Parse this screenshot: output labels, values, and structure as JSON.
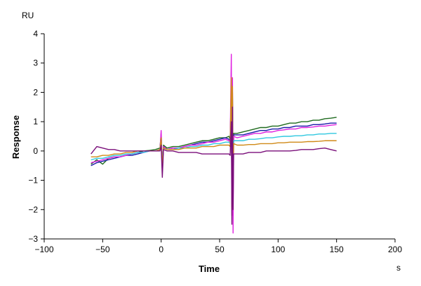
{
  "chart_data": {
    "type": "line",
    "title": "",
    "xlabel": "Time",
    "ylabel": "Response",
    "x_unit": "s",
    "y_unit": "RU",
    "xlim": [
      -100,
      200
    ],
    "ylim": [
      -3,
      4
    ],
    "xticks": [
      -100,
      -50,
      0,
      50,
      100,
      150,
      200
    ],
    "yticks": [
      -3,
      -2,
      -1,
      0,
      1,
      2,
      3,
      4
    ],
    "grid": false,
    "legend": "none",
    "series": [
      {
        "color": "#1f6b1f",
        "points": [
          [
            -60,
            -0.45
          ],
          [
            -55,
            -0.3
          ],
          [
            -50,
            -0.45
          ],
          [
            -45,
            -0.25
          ],
          [
            -40,
            -0.2
          ],
          [
            -35,
            -0.2
          ],
          [
            -30,
            -0.15
          ],
          [
            -25,
            -0.1
          ],
          [
            -20,
            -0.05
          ],
          [
            -15,
            0.0
          ],
          [
            -10,
            0.02
          ],
          [
            -5,
            0.05
          ],
          [
            -1,
            0.1
          ],
          [
            0,
            0.6
          ],
          [
            1,
            -0.7
          ],
          [
            2,
            0.2
          ],
          [
            5,
            0.1
          ],
          [
            10,
            0.15
          ],
          [
            15,
            0.15
          ],
          [
            20,
            0.2
          ],
          [
            25,
            0.25
          ],
          [
            30,
            0.3
          ],
          [
            35,
            0.35
          ],
          [
            40,
            0.35
          ],
          [
            45,
            0.4
          ],
          [
            50,
            0.45
          ],
          [
            55,
            0.45
          ],
          [
            58,
            0.5
          ],
          [
            59,
            0.4
          ],
          [
            60,
            2.2
          ],
          [
            60.5,
            -1.9
          ],
          [
            61,
            2.0
          ],
          [
            61.5,
            -0.8
          ],
          [
            62,
            0.6
          ],
          [
            65,
            0.6
          ],
          [
            70,
            0.65
          ],
          [
            75,
            0.7
          ],
          [
            80,
            0.75
          ],
          [
            85,
            0.8
          ],
          [
            90,
            0.8
          ],
          [
            95,
            0.85
          ],
          [
            100,
            0.85
          ],
          [
            105,
            0.9
          ],
          [
            110,
            0.95
          ],
          [
            115,
            0.95
          ],
          [
            120,
            1.0
          ],
          [
            125,
            1.0
          ],
          [
            130,
            1.05
          ],
          [
            135,
            1.05
          ],
          [
            140,
            1.1
          ],
          [
            145,
            1.12
          ],
          [
            150,
            1.15
          ]
        ]
      },
      {
        "color": "#1a1aa8",
        "points": [
          [
            -60,
            -0.5
          ],
          [
            -55,
            -0.4
          ],
          [
            -50,
            -0.35
          ],
          [
            -45,
            -0.3
          ],
          [
            -40,
            -0.25
          ],
          [
            -35,
            -0.2
          ],
          [
            -30,
            -0.15
          ],
          [
            -25,
            -0.15
          ],
          [
            -20,
            -0.1
          ],
          [
            -15,
            -0.05
          ],
          [
            -10,
            0.0
          ],
          [
            -5,
            0.0
          ],
          [
            -1,
            0.05
          ],
          [
            0,
            0.55
          ],
          [
            1,
            -0.6
          ],
          [
            2,
            0.15
          ],
          [
            5,
            0.05
          ],
          [
            10,
            0.1
          ],
          [
            15,
            0.1
          ],
          [
            20,
            0.15
          ],
          [
            25,
            0.2
          ],
          [
            30,
            0.25
          ],
          [
            35,
            0.3
          ],
          [
            40,
            0.3
          ],
          [
            45,
            0.35
          ],
          [
            50,
            0.4
          ],
          [
            55,
            0.45
          ],
          [
            58,
            0.4
          ],
          [
            59,
            0.35
          ],
          [
            60,
            2.0
          ],
          [
            60.5,
            -1.8
          ],
          [
            61,
            1.8
          ],
          [
            61.5,
            -0.7
          ],
          [
            62,
            0.55
          ],
          [
            65,
            0.55
          ],
          [
            70,
            0.55
          ],
          [
            75,
            0.6
          ],
          [
            80,
            0.65
          ],
          [
            85,
            0.7
          ],
          [
            90,
            0.7
          ],
          [
            95,
            0.75
          ],
          [
            100,
            0.75
          ],
          [
            105,
            0.8
          ],
          [
            110,
            0.8
          ],
          [
            115,
            0.85
          ],
          [
            120,
            0.85
          ],
          [
            125,
            0.85
          ],
          [
            130,
            0.9
          ],
          [
            135,
            0.9
          ],
          [
            140,
            0.92
          ],
          [
            145,
            0.95
          ],
          [
            150,
            0.95
          ]
        ]
      },
      {
        "color": "#e020e0",
        "points": [
          [
            -60,
            -0.4
          ],
          [
            -55,
            -0.35
          ],
          [
            -50,
            -0.3
          ],
          [
            -45,
            -0.25
          ],
          [
            -40,
            -0.2
          ],
          [
            -35,
            -0.2
          ],
          [
            -30,
            -0.15
          ],
          [
            -25,
            -0.1
          ],
          [
            -20,
            -0.05
          ],
          [
            -15,
            -0.05
          ],
          [
            -10,
            0.0
          ],
          [
            -5,
            0.0
          ],
          [
            -1,
            0.05
          ],
          [
            0,
            0.7
          ],
          [
            1,
            -0.55
          ],
          [
            2,
            0.15
          ],
          [
            5,
            0.05
          ],
          [
            10,
            0.1
          ],
          [
            15,
            0.1
          ],
          [
            20,
            0.15
          ],
          [
            25,
            0.2
          ],
          [
            30,
            0.2
          ],
          [
            35,
            0.25
          ],
          [
            40,
            0.3
          ],
          [
            45,
            0.3
          ],
          [
            50,
            0.35
          ],
          [
            55,
            0.4
          ],
          [
            58,
            0.35
          ],
          [
            59,
            0.3
          ],
          [
            60,
            3.3
          ],
          [
            60.5,
            -2.2
          ],
          [
            61,
            2.5
          ],
          [
            61.5,
            -2.8
          ],
          [
            62,
            0.5
          ],
          [
            65,
            0.45
          ],
          [
            70,
            0.5
          ],
          [
            75,
            0.55
          ],
          [
            80,
            0.6
          ],
          [
            85,
            0.6
          ],
          [
            90,
            0.65
          ],
          [
            95,
            0.65
          ],
          [
            100,
            0.7
          ],
          [
            105,
            0.72
          ],
          [
            110,
            0.75
          ],
          [
            115,
            0.75
          ],
          [
            120,
            0.8
          ],
          [
            125,
            0.8
          ],
          [
            130,
            0.82
          ],
          [
            135,
            0.85
          ],
          [
            140,
            0.85
          ],
          [
            145,
            0.88
          ],
          [
            150,
            0.9
          ]
        ]
      },
      {
        "color": "#30c8e0",
        "points": [
          [
            -60,
            -0.3
          ],
          [
            -55,
            -0.25
          ],
          [
            -50,
            -0.25
          ],
          [
            -45,
            -0.2
          ],
          [
            -40,
            -0.15
          ],
          [
            -35,
            -0.15
          ],
          [
            -30,
            -0.1
          ],
          [
            -25,
            -0.1
          ],
          [
            -20,
            -0.05
          ],
          [
            -15,
            -0.05
          ],
          [
            -10,
            0.0
          ],
          [
            -5,
            0.0
          ],
          [
            -1,
            0.05
          ],
          [
            0,
            0.4
          ],
          [
            1,
            -0.4
          ],
          [
            2,
            0.1
          ],
          [
            5,
            0.05
          ],
          [
            10,
            0.05
          ],
          [
            15,
            0.1
          ],
          [
            20,
            0.1
          ],
          [
            25,
            0.15
          ],
          [
            30,
            0.15
          ],
          [
            35,
            0.2
          ],
          [
            40,
            0.2
          ],
          [
            45,
            0.25
          ],
          [
            50,
            0.25
          ],
          [
            55,
            0.3
          ],
          [
            58,
            0.3
          ],
          [
            59,
            0.25
          ],
          [
            60,
            1.6
          ],
          [
            60.5,
            -1.4
          ],
          [
            61,
            1.4
          ],
          [
            61.5,
            -0.6
          ],
          [
            62,
            0.35
          ],
          [
            65,
            0.35
          ],
          [
            70,
            0.35
          ],
          [
            75,
            0.4
          ],
          [
            80,
            0.4
          ],
          [
            85,
            0.42
          ],
          [
            90,
            0.45
          ],
          [
            95,
            0.45
          ],
          [
            100,
            0.48
          ],
          [
            105,
            0.5
          ],
          [
            110,
            0.5
          ],
          [
            115,
            0.52
          ],
          [
            120,
            0.52
          ],
          [
            125,
            0.55
          ],
          [
            130,
            0.55
          ],
          [
            135,
            0.58
          ],
          [
            140,
            0.58
          ],
          [
            145,
            0.6
          ],
          [
            150,
            0.6
          ]
        ]
      },
      {
        "color": "#d08a18",
        "points": [
          [
            -60,
            -0.2
          ],
          [
            -55,
            -0.2
          ],
          [
            -50,
            -0.15
          ],
          [
            -45,
            -0.15
          ],
          [
            -40,
            -0.1
          ],
          [
            -35,
            -0.1
          ],
          [
            -30,
            -0.05
          ],
          [
            -25,
            -0.05
          ],
          [
            -20,
            0.0
          ],
          [
            -15,
            0.0
          ],
          [
            -10,
            0.0
          ],
          [
            -5,
            0.0
          ],
          [
            -1,
            0.05
          ],
          [
            0,
            0.45
          ],
          [
            1,
            -0.5
          ],
          [
            2,
            0.1
          ],
          [
            5,
            0.05
          ],
          [
            10,
            0.05
          ],
          [
            15,
            0.05
          ],
          [
            20,
            0.1
          ],
          [
            25,
            0.1
          ],
          [
            30,
            0.1
          ],
          [
            35,
            0.15
          ],
          [
            40,
            0.15
          ],
          [
            45,
            0.15
          ],
          [
            50,
            0.2
          ],
          [
            55,
            0.2
          ],
          [
            58,
            0.2
          ],
          [
            59,
            0.15
          ],
          [
            60,
            2.5
          ],
          [
            60.5,
            -2.0
          ],
          [
            61,
            2.2
          ],
          [
            61.5,
            -1.0
          ],
          [
            62,
            0.25
          ],
          [
            65,
            0.2
          ],
          [
            70,
            0.2
          ],
          [
            75,
            0.22
          ],
          [
            80,
            0.22
          ],
          [
            85,
            0.25
          ],
          [
            90,
            0.25
          ],
          [
            95,
            0.25
          ],
          [
            100,
            0.28
          ],
          [
            105,
            0.28
          ],
          [
            110,
            0.3
          ],
          [
            115,
            0.3
          ],
          [
            120,
            0.3
          ],
          [
            125,
            0.32
          ],
          [
            130,
            0.32
          ],
          [
            135,
            0.33
          ],
          [
            140,
            0.35
          ],
          [
            145,
            0.35
          ],
          [
            150,
            0.35
          ]
        ]
      },
      {
        "color": "#7a0f7a",
        "points": [
          [
            -60,
            -0.1
          ],
          [
            -55,
            0.15
          ],
          [
            -50,
            0.1
          ],
          [
            -45,
            0.05
          ],
          [
            -40,
            0.05
          ],
          [
            -35,
            0.0
          ],
          [
            -30,
            0.0
          ],
          [
            -25,
            0.0
          ],
          [
            -20,
            0.0
          ],
          [
            -15,
            0.0
          ],
          [
            -10,
            0.0
          ],
          [
            -5,
            0.0
          ],
          [
            -1,
            0.0
          ],
          [
            0,
            0.2
          ],
          [
            1,
            -0.9
          ],
          [
            2,
            0.05
          ],
          [
            5,
            0.0
          ],
          [
            10,
            0.0
          ],
          [
            15,
            -0.05
          ],
          [
            20,
            -0.05
          ],
          [
            25,
            -0.05
          ],
          [
            30,
            -0.05
          ],
          [
            35,
            -0.1
          ],
          [
            40,
            -0.1
          ],
          [
            45,
            -0.1
          ],
          [
            50,
            -0.1
          ],
          [
            55,
            -0.1
          ],
          [
            58,
            -0.1
          ],
          [
            59,
            -0.15
          ],
          [
            60,
            1.0
          ],
          [
            60.5,
            -2.5
          ],
          [
            61,
            1.5
          ],
          [
            61.5,
            -2.0
          ],
          [
            62,
            -0.1
          ],
          [
            65,
            -0.1
          ],
          [
            70,
            -0.1
          ],
          [
            75,
            -0.05
          ],
          [
            80,
            -0.05
          ],
          [
            85,
            -0.05
          ],
          [
            90,
            0.0
          ],
          [
            95,
            0.0
          ],
          [
            100,
            0.0
          ],
          [
            105,
            0.0
          ],
          [
            110,
            0.0
          ],
          [
            115,
            0.02
          ],
          [
            120,
            0.05
          ],
          [
            125,
            0.05
          ],
          [
            130,
            0.05
          ],
          [
            135,
            0.08
          ],
          [
            140,
            0.1
          ],
          [
            145,
            0.05
          ],
          [
            150,
            0.0
          ]
        ]
      }
    ]
  }
}
